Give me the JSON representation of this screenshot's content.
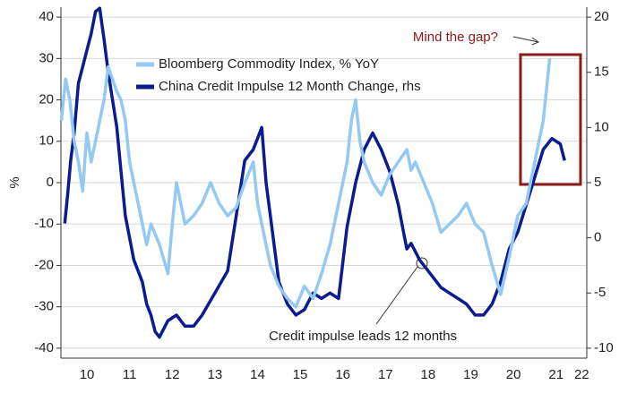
{
  "chart_data": {
    "type": "line",
    "ylabel": "%",
    "annotations": [
      "Mind the gap?",
      "Credit impulse leads 12 months"
    ],
    "legend": "upper left",
    "xlim": [
      9.89,
      22.22
    ],
    "xticks": [
      {
        "value": 10.5,
        "label": "10"
      },
      {
        "value": 11.5,
        "label": "11"
      },
      {
        "value": 12.5,
        "label": "12"
      },
      {
        "value": 13.5,
        "label": "13"
      },
      {
        "value": 14.5,
        "label": "14"
      },
      {
        "value": 15.5,
        "label": "15"
      },
      {
        "value": 16.5,
        "label": "16"
      },
      {
        "value": 17.5,
        "label": "17"
      },
      {
        "value": 18.5,
        "label": "18"
      },
      {
        "value": 19.5,
        "label": "19"
      },
      {
        "value": 20.5,
        "label": "20"
      },
      {
        "value": 21.5,
        "label": "21"
      },
      {
        "value": 22.1,
        "label": "22"
      }
    ],
    "ylim": [
      -42.4,
      42.4
    ],
    "yticks": [
      -40,
      -30,
      -20,
      -10,
      0,
      10,
      20,
      30,
      40
    ],
    "y2lim": [
      -10.9,
      20.9
    ],
    "y2ticks": [
      -10,
      -5,
      0,
      5,
      10,
      15,
      20
    ],
    "grid": true,
    "series": [
      {
        "name": "Bloomberg Commodity Index, % YoY",
        "color": "#93c9f3",
        "x": [
          9.9,
          10.0,
          10.1,
          10.2,
          10.3,
          10.4,
          10.5,
          10.6,
          10.7,
          10.9,
          11.0,
          11.1,
          11.2,
          11.3,
          11.4,
          11.5,
          11.6,
          11.7,
          11.8,
          11.9,
          12.0,
          12.2,
          12.4,
          12.5,
          12.6,
          12.7,
          12.8,
          13.0,
          13.2,
          13.4,
          13.6,
          13.8,
          14.0,
          14.2,
          14.4,
          14.5,
          14.6,
          14.8,
          15.0,
          15.2,
          15.4,
          15.6,
          15.8,
          16.0,
          16.2,
          16.4,
          16.6,
          16.7,
          16.8,
          16.9,
          17.0,
          17.2,
          17.4,
          17.6,
          17.8,
          18.0,
          18.1,
          18.2,
          18.4,
          18.6,
          18.8,
          19.0,
          19.2,
          19.4,
          19.6,
          19.8,
          20.0,
          20.2,
          20.4,
          20.6,
          20.8,
          21.0,
          21.2,
          21.35
        ],
        "values": [
          15,
          25,
          20,
          10,
          5,
          -2,
          12,
          5,
          10,
          20,
          28,
          25,
          22,
          20,
          15,
          5,
          0,
          -5,
          -10,
          -15,
          -10,
          -15,
          -22,
          -10,
          0,
          -5,
          -10,
          -8,
          -5,
          0,
          -5,
          -8,
          -6,
          0,
          5,
          -5,
          -10,
          -20,
          -25,
          -28,
          -30,
          -25,
          -28,
          -22,
          -15,
          -5,
          5,
          15,
          20,
          10,
          5,
          0,
          -3,
          2,
          5,
          8,
          3,
          5,
          0,
          -5,
          -12,
          -10,
          -8,
          -5,
          -10,
          -12,
          -20,
          -27,
          -18,
          -8,
          -5,
          5,
          15,
          30
        ]
      },
      {
        "name": "China Credit Impulse 12 Month Change, rhs",
        "color": "#0b1c8f",
        "axis": "y2",
        "x": [
          9.98,
          10.05,
          10.12,
          10.2,
          10.3,
          10.4,
          10.5,
          10.6,
          10.7,
          10.8,
          10.9,
          11.0,
          11.2,
          11.3,
          11.4,
          11.6,
          11.8,
          11.9,
          12.0,
          12.1,
          12.2,
          12.4,
          12.6,
          12.8,
          13.0,
          13.2,
          13.5,
          13.8,
          14.0,
          14.2,
          14.4,
          14.6,
          14.7,
          14.8,
          15.0,
          15.2,
          15.4,
          15.6,
          15.8,
          16.0,
          16.2,
          16.4,
          16.6,
          16.8,
          17.0,
          17.2,
          17.4,
          17.6,
          17.8,
          17.9,
          18.0,
          18.1,
          18.3,
          18.5,
          18.8,
          19.0,
          19.2,
          19.4,
          19.6,
          19.8,
          20.0,
          20.2,
          20.4,
          20.6,
          20.8,
          21.0,
          21.2,
          21.4,
          21.6,
          21.7
        ],
        "values": [
          1.3,
          4,
          7,
          9.5,
          14,
          15.5,
          17,
          18.5,
          20.5,
          20.8,
          18,
          15,
          10,
          6,
          2,
          -2,
          -4,
          -6,
          -7,
          -8.5,
          -9,
          -7.5,
          -7,
          -8,
          -8,
          -7,
          -5,
          -3,
          2,
          7,
          8,
          10,
          5,
          2,
          -4,
          -6,
          -7,
          -6.5,
          -5,
          -5.5,
          -5,
          -5.5,
          1,
          5,
          8,
          9.5,
          8,
          6,
          3,
          1,
          -1,
          -0.5,
          -2,
          -3,
          -4.5,
          -5,
          -5.5,
          -6,
          -7,
          -7,
          -6,
          -4,
          -1,
          0.5,
          3,
          5.5,
          8,
          9,
          8.5,
          7
        ]
      }
    ]
  }
}
